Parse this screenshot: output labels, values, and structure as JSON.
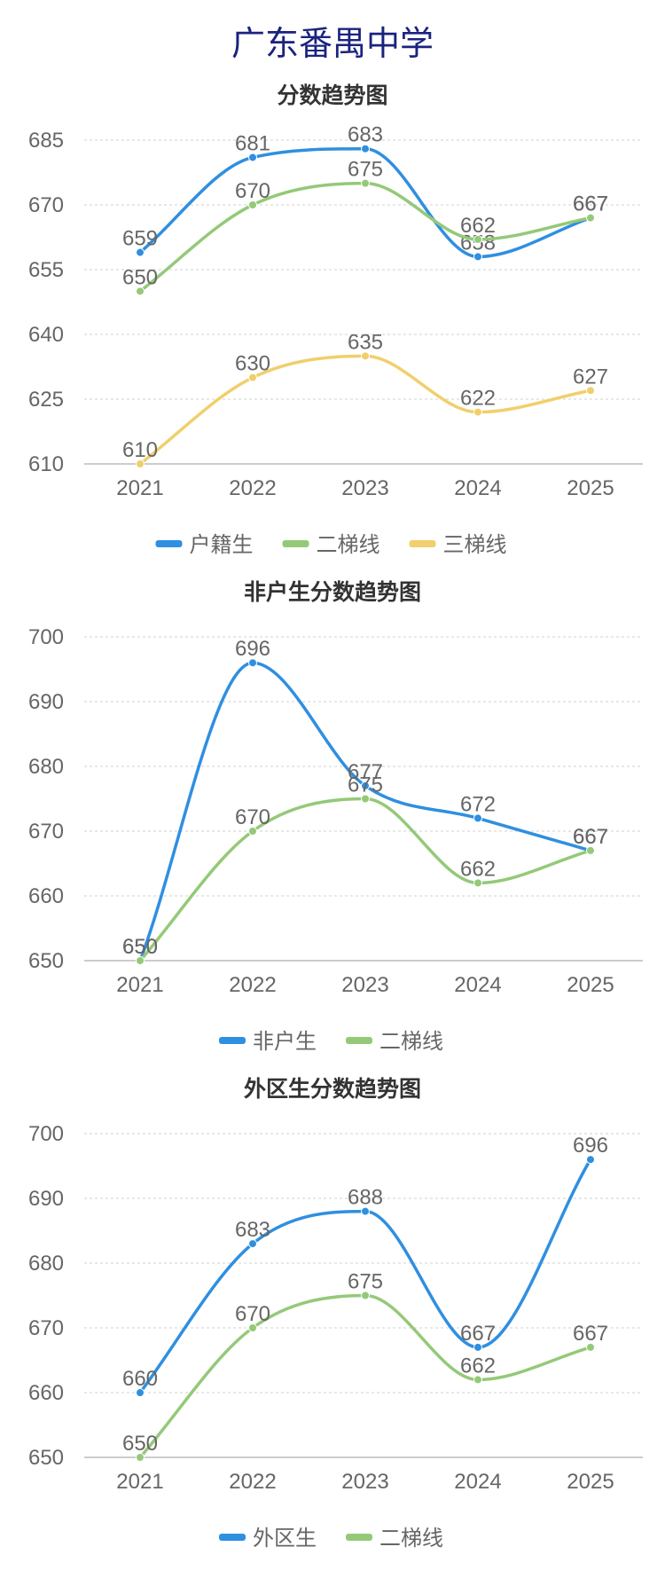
{
  "page": {
    "title": "广东番禺中学"
  },
  "colors": {
    "blue": "#2f8fe0",
    "green": "#94c978",
    "yellow": "#f0cf6c",
    "grid": "#d0d0d0",
    "axis": "#bbbbbb"
  },
  "chart_data": [
    {
      "type": "line",
      "title": "分数趋势图",
      "categories": [
        "2021",
        "2022",
        "2023",
        "2024",
        "2025"
      ],
      "ylim": [
        610,
        685
      ],
      "yticks": [
        610,
        625,
        640,
        655,
        670,
        685
      ],
      "grid": true,
      "legend_position": "bottom",
      "series": [
        {
          "name": "户籍生",
          "values": [
            659,
            681,
            683,
            658,
            667
          ],
          "color": "#2f8fe0"
        },
        {
          "name": "二梯线",
          "values": [
            650,
            670,
            675,
            662,
            667
          ],
          "color": "#94c978"
        },
        {
          "name": "三梯线",
          "values": [
            610,
            630,
            635,
            622,
            627
          ],
          "color": "#f0cf6c"
        }
      ]
    },
    {
      "type": "line",
      "title": "非户生分数趋势图",
      "categories": [
        "2021",
        "2022",
        "2023",
        "2024",
        "2025"
      ],
      "ylim": [
        650,
        700
      ],
      "yticks": [
        650,
        660,
        670,
        680,
        690,
        700
      ],
      "grid": true,
      "legend_position": "bottom",
      "series": [
        {
          "name": "非户生",
          "values": [
            650,
            696,
            677,
            672,
            667
          ],
          "color": "#2f8fe0"
        },
        {
          "name": "二梯线",
          "values": [
            650,
            670,
            675,
            662,
            667
          ],
          "color": "#94c978"
        }
      ]
    },
    {
      "type": "line",
      "title": "外区生分数趋势图",
      "categories": [
        "2021",
        "2022",
        "2023",
        "2024",
        "2025"
      ],
      "ylim": [
        650,
        700
      ],
      "yticks": [
        650,
        660,
        670,
        680,
        690,
        700
      ],
      "grid": true,
      "legend_position": "bottom",
      "series": [
        {
          "name": "外区生",
          "values": [
            660,
            683,
            688,
            667,
            696
          ],
          "color": "#2f8fe0"
        },
        {
          "name": "二梯线",
          "values": [
            650,
            670,
            675,
            662,
            667
          ],
          "color": "#94c978"
        }
      ]
    }
  ]
}
